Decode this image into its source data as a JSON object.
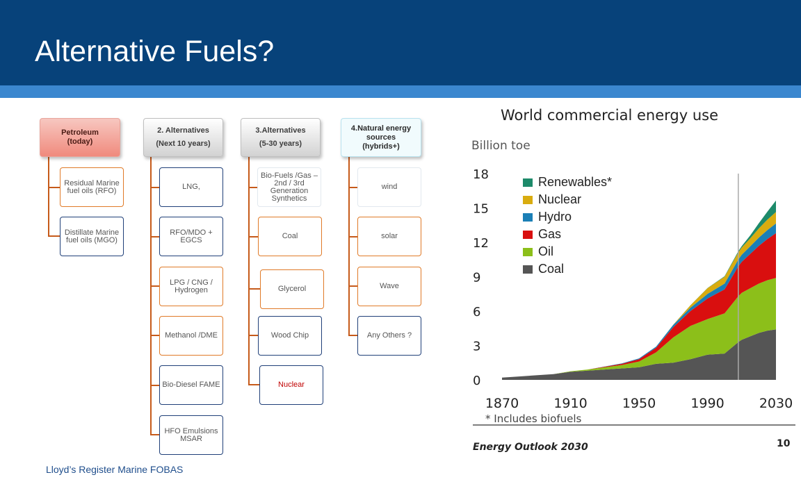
{
  "title": "Alternative Fuels?",
  "footer": "Lloyd’s Register Marine  FOBAS",
  "tree": {
    "petroleum": {
      "head_line1": "Petroleum",
      "head_line2": "(today)",
      "items": [
        "Residual Marine fuel oils (RFO)",
        "Distillate Marine fuel oils (MGO)"
      ]
    },
    "alt10": {
      "head_line1": "2. Alternatives",
      "head_line2": "(Next 10 years)",
      "items": [
        "LNG,",
        "RFO/MDO + EGCS",
        "LPG / CNG / Hydrogen",
        "Methanol /DME",
        "Bio-Diesel FAME",
        "HFO Emulsions MSAR"
      ]
    },
    "alt30": {
      "head_line1": "3.Alternatives",
      "head_line2": "(5-30 years)",
      "items": [
        "Bio-Fuels /Gas – 2nd  / 3rd Generation Synthetics",
        "Coal",
        "Glycerol",
        "Wood Chip",
        "Nuclear"
      ]
    },
    "natural": {
      "head_line1": "4.Natural energy sources",
      "head_line2": "(hybrids+)",
      "items": [
        "wind",
        "solar",
        "Wave",
        "Any Others ?"
      ]
    }
  },
  "chart_data": {
    "type": "area",
    "title": "World commercial energy use",
    "ylabel": "Billion toe",
    "xlim": [
      1870,
      2030
    ],
    "ylim": [
      0,
      18
    ],
    "yticks": [
      "0",
      "3",
      "6",
      "9",
      "12",
      "15",
      "18"
    ],
    "xticks": [
      "1870",
      "1910",
      "1950",
      "1990",
      "2030"
    ],
    "legend_placement": "top-left",
    "footnote": "* Includes biofuels",
    "source": "Energy Outlook 2030",
    "page_number": "10",
    "projection_start_year": 2008,
    "x": [
      1870,
      1880,
      1890,
      1900,
      1910,
      1920,
      1930,
      1940,
      1950,
      1960,
      1970,
      1980,
      1990,
      2000,
      2008,
      2010,
      2015,
      2020,
      2025,
      2030
    ],
    "series": [
      {
        "name": "Coal",
        "color": "#555555",
        "values": [
          0.2,
          0.3,
          0.4,
          0.5,
          0.7,
          0.8,
          0.9,
          1.0,
          1.1,
          1.4,
          1.5,
          1.8,
          2.2,
          2.3,
          3.3,
          3.5,
          3.8,
          4.1,
          4.3,
          4.4
        ]
      },
      {
        "name": "Oil",
        "color": "#8cbf1a",
        "values": [
          0.0,
          0.0,
          0.0,
          0.0,
          0.05,
          0.1,
          0.2,
          0.3,
          0.5,
          1.0,
          2.2,
          2.9,
          3.1,
          3.5,
          4.0,
          4.1,
          4.2,
          4.3,
          4.4,
          4.5
        ]
      },
      {
        "name": "Gas",
        "color": "#d90f0f",
        "values": [
          0.0,
          0.0,
          0.0,
          0.0,
          0.0,
          0.0,
          0.05,
          0.1,
          0.2,
          0.4,
          0.9,
          1.3,
          1.8,
          2.1,
          2.6,
          2.7,
          3.0,
          3.3,
          3.6,
          3.9
        ]
      },
      {
        "name": "Hydro",
        "color": "#1b7fb6",
        "values": [
          0.0,
          0.0,
          0.0,
          0.0,
          0.0,
          0.0,
          0.02,
          0.04,
          0.07,
          0.1,
          0.2,
          0.3,
          0.4,
          0.5,
          0.6,
          0.62,
          0.66,
          0.72,
          0.78,
          0.85
        ]
      },
      {
        "name": "Nuclear",
        "color": "#d9ac0f",
        "values": [
          0.0,
          0.0,
          0.0,
          0.0,
          0.0,
          0.0,
          0.0,
          0.0,
          0.0,
          0.0,
          0.02,
          0.2,
          0.5,
          0.6,
          0.62,
          0.63,
          0.7,
          0.8,
          0.9,
          1.0
        ]
      },
      {
        "name": "Renewables*",
        "color": "#1d8a6a",
        "values": [
          0.0,
          0.0,
          0.0,
          0.0,
          0.0,
          0.0,
          0.0,
          0.0,
          0.0,
          0.0,
          0.0,
          0.01,
          0.02,
          0.05,
          0.1,
          0.12,
          0.25,
          0.45,
          0.7,
          1.0
        ]
      }
    ]
  }
}
